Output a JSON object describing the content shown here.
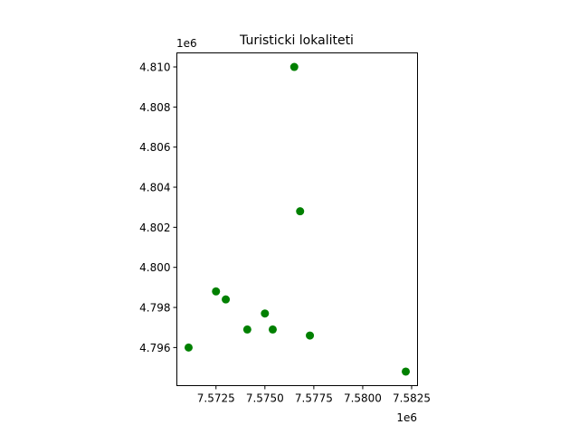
{
  "chart_data": {
    "type": "scatter",
    "title": "Turisticki lokaliteti",
    "xlabel": "",
    "ylabel": "",
    "x_offset_label": "1e6",
    "y_offset_label": "1e6",
    "xlim": [
      7.5705,
      7.5828
    ],
    "ylim": [
      4.7941,
      4.8107
    ],
    "x_ticks": [
      7.5725,
      7.575,
      7.5775,
      7.58,
      7.5825
    ],
    "x_tick_labels": [
      "7.5725",
      "7.5750",
      "7.5775",
      "7.5800",
      "7.5825"
    ],
    "y_ticks": [
      4.796,
      4.798,
      4.8,
      4.802,
      4.804,
      4.806,
      4.808,
      4.81
    ],
    "y_tick_labels": [
      "4.796",
      "4.798",
      "4.800",
      "4.802",
      "4.804",
      "4.806",
      "4.808",
      "4.810"
    ],
    "grid": false,
    "marker_color": "#008000",
    "points": [
      {
        "x": 7.5765,
        "y": 4.81
      },
      {
        "x": 7.5768,
        "y": 4.8028
      },
      {
        "x": 7.5725,
        "y": 4.7988
      },
      {
        "x": 7.573,
        "y": 4.7984
      },
      {
        "x": 7.575,
        "y": 4.7977
      },
      {
        "x": 7.5741,
        "y": 4.7969
      },
      {
        "x": 7.5754,
        "y": 4.7969
      },
      {
        "x": 7.5773,
        "y": 4.7966
      },
      {
        "x": 7.5711,
        "y": 4.796
      },
      {
        "x": 7.5822,
        "y": 4.7948
      }
    ]
  }
}
